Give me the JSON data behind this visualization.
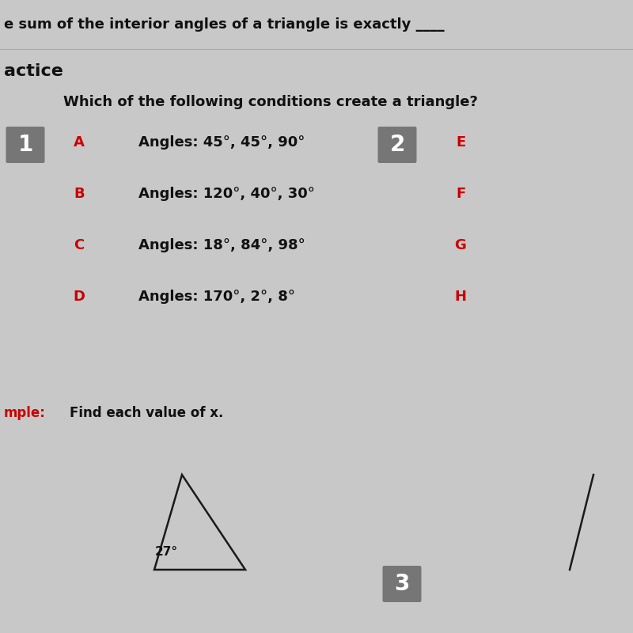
{
  "bg_color": "#c8c8c8",
  "top_text": "e sum of the interior angles of a triangle is exactly ____",
  "practice_text": "actice",
  "question_text": "Which of the following conditions create a triangle?",
  "box1_label": "1",
  "box2_label": "2",
  "box3_label": "3",
  "box_color": "#767676",
  "letter_color": "#cc0000",
  "text_color": "#111111",
  "letters_left": [
    "A",
    "B",
    "C",
    "D"
  ],
  "letters_right": [
    "E",
    "F",
    "G",
    "H"
  ],
  "answers": [
    "Angles: 45°, 45°, 90°",
    "Angles: 120°, 40°, 30°",
    "Angles: 18°, 84°, 98°",
    "Angles: 170°, 2°, 8°"
  ],
  "example_label": "mple:",
  "find_text": "Find each value of x.",
  "angle_label": "27°",
  "triangle_color": "#1a1a1a"
}
